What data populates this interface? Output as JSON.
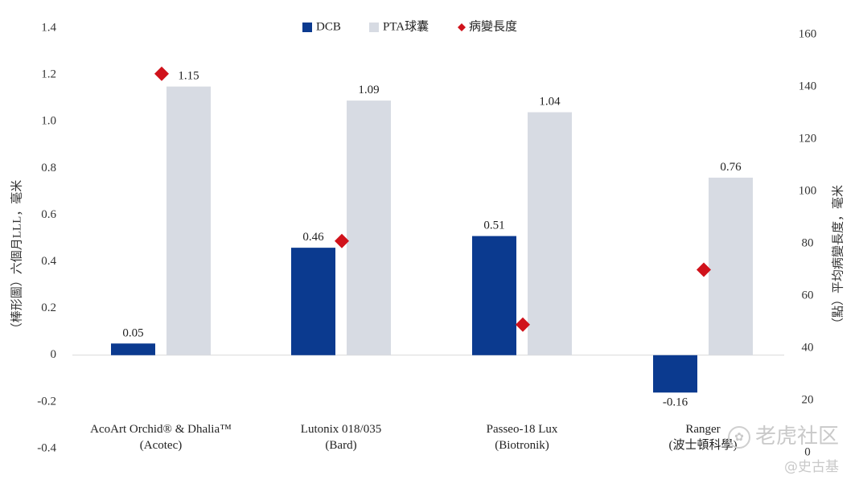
{
  "chart_data": {
    "type": "bar",
    "categories": [
      {
        "line1": "AcoArt Orchid® & Dhalia™",
        "line2": "(Acotec)"
      },
      {
        "line1": "Lutonix 018/035",
        "line2": "(Bard)"
      },
      {
        "line1": "Passeo-18 Lux",
        "line2": "(Biotronik)"
      },
      {
        "line1": "Ranger",
        "line2": "(波士頓科學)"
      }
    ],
    "series": [
      {
        "name": "DCB",
        "kind": "bar",
        "axis": "left",
        "color": "#0b3a8f",
        "values": [
          0.05,
          0.46,
          0.51,
          -0.16
        ]
      },
      {
        "name": "PTA球囊",
        "kind": "bar",
        "axis": "left",
        "color": "#d7dbe3",
        "values": [
          1.15,
          1.09,
          1.04,
          0.76
        ]
      },
      {
        "name": "病變長度",
        "kind": "marker",
        "axis": "right",
        "color": "#d0121b",
        "values": [
          145,
          81,
          49,
          70
        ]
      }
    ],
    "data_labels": {
      "DCB": [
        "0.05",
        "0.46",
        "0.51",
        "-0.16"
      ],
      "PTA球囊": [
        "1.15",
        "1.09",
        "1.04",
        "0.76"
      ]
    },
    "y_left": {
      "label": "（棒形圖）六個月LLL，毫米",
      "ylim": [
        -0.4,
        1.4
      ],
      "ticks": [
        "1.4",
        "1.2",
        "1.0",
        "0.8",
        "0.6",
        "0.4",
        "0.2",
        "0",
        "-0.2",
        "-0.4"
      ]
    },
    "y_right": {
      "label": "（點）平均病變長度，毫米",
      "ylim": [
        0,
        160
      ],
      "ticks": [
        "160",
        "140",
        "120",
        "100",
        "80",
        "60",
        "40",
        "20",
        "0"
      ]
    },
    "legend": {
      "position": "top-center"
    },
    "grid": false
  },
  "watermark": {
    "community": "老虎社区",
    "author": "@史古基"
  }
}
